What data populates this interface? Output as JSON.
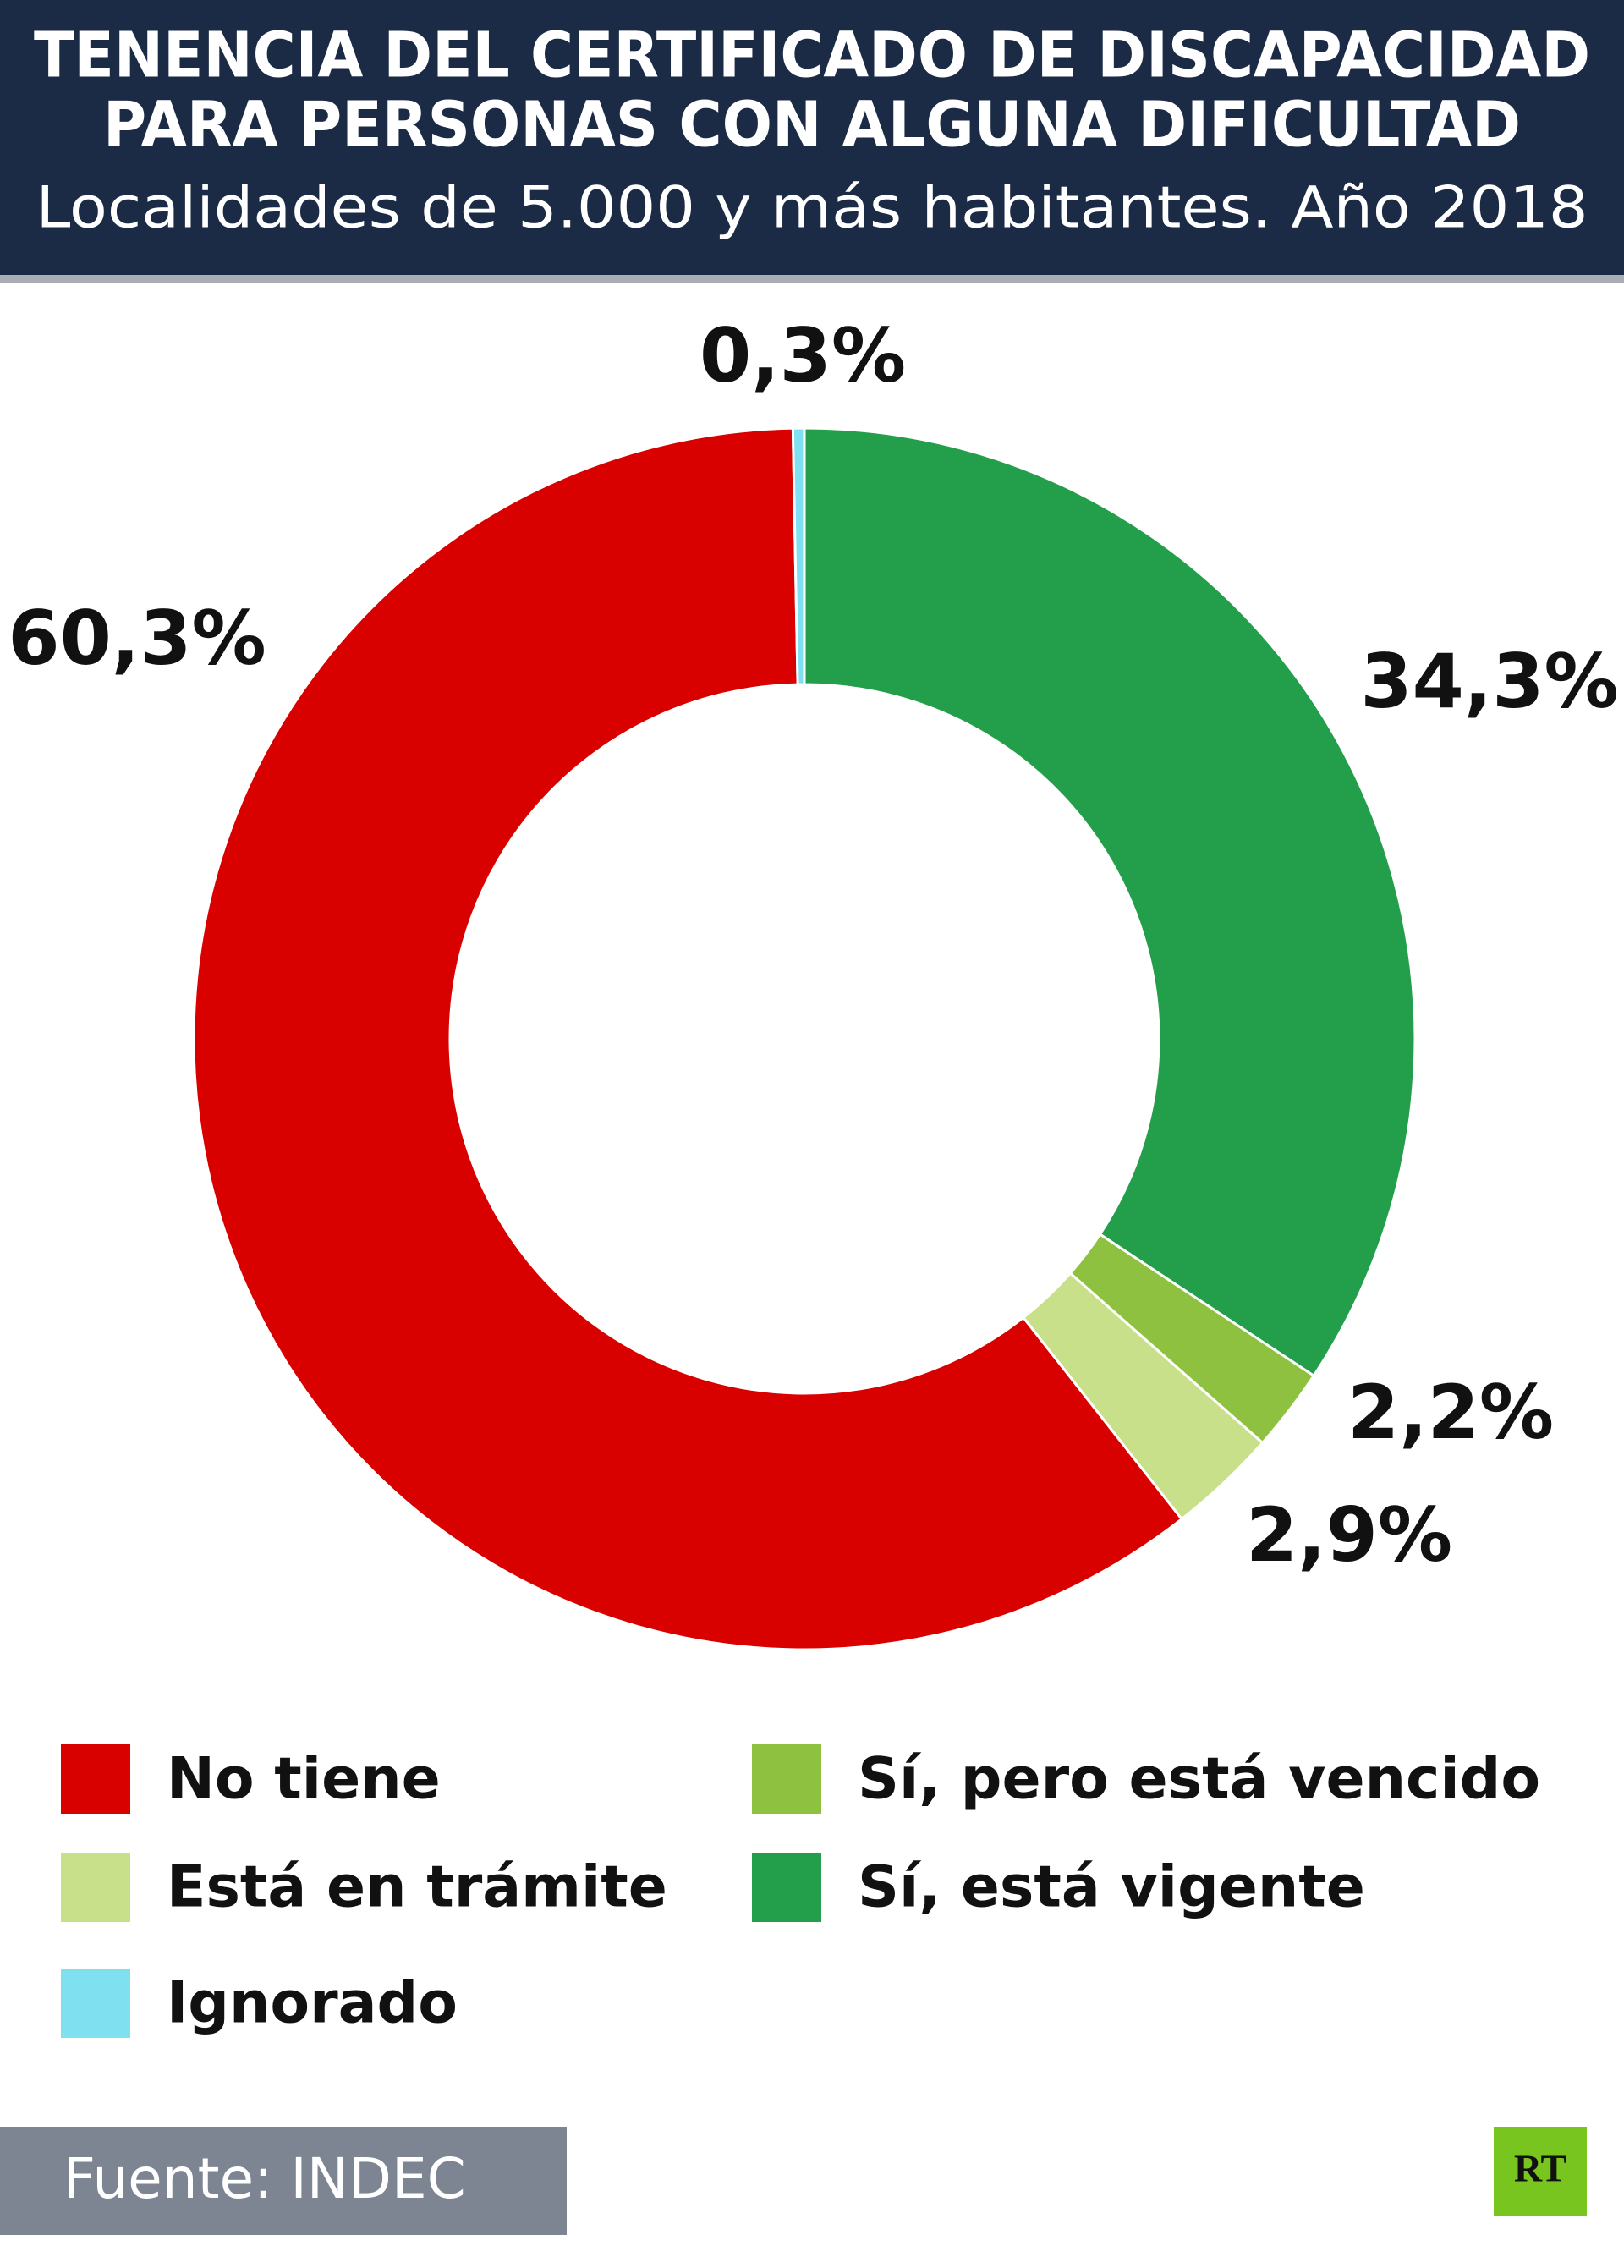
{
  "chart_data": {
    "type": "donut",
    "title": [
      "TENENCIA DEL CERTIFICADO DE DISCAPACIDAD",
      "PARA PERSONAS CON ALGUNA DIFICULTAD"
    ],
    "subtitle": "Localidades de 5.000 y más habitantes. Año 2018",
    "categories": [
      "Sí, está vigente",
      "Sí, pero está vencido",
      "Está en trámite",
      "No tiene",
      "Ignorado"
    ],
    "values": [
      34.3,
      2.2,
      2.9,
      60.3,
      0.3
    ],
    "value_labels": [
      "34,3%",
      "2,2%",
      "2,9%",
      "60,3%",
      "0,3%"
    ],
    "colors": [
      "#239e4a",
      "#8dc13f",
      "#c9e08a",
      "#d90000",
      "#7fe0f0"
    ],
    "source": "Fuente: INDEC",
    "logo": "RT"
  }
}
